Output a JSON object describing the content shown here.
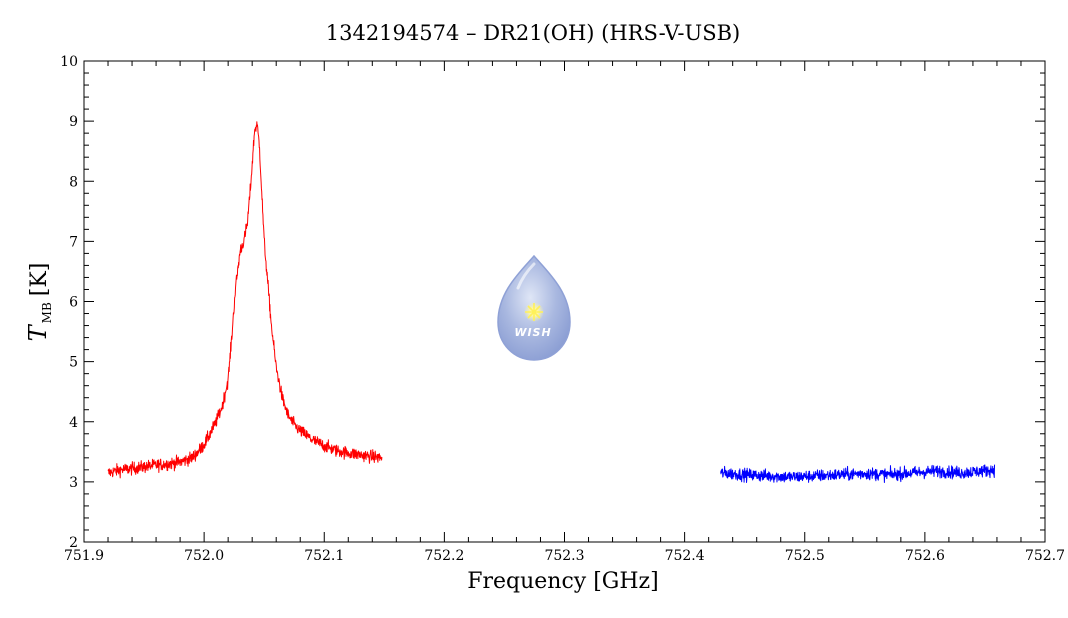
{
  "chart_data": {
    "type": "line",
    "title": "1342194574 – DR21(OH) (HRS-V-USB)",
    "xlabel": "Frequency [GHz]",
    "ylabel_main": "T",
    "ylabel_sub": "MB",
    "ylabel_unit": "[K]",
    "xlim": [
      751.9,
      752.7
    ],
    "ylim": [
      2,
      10
    ],
    "x_ticks": [
      "751.9",
      "752.0",
      "752.1",
      "752.2",
      "752.3",
      "752.4",
      "752.5",
      "752.6",
      "752.7"
    ],
    "y_ticks": [
      "2",
      "3",
      "4",
      "5",
      "6",
      "7",
      "8",
      "9",
      "10"
    ],
    "grid": false,
    "legend": "none",
    "series": [
      {
        "color": "#ff0000",
        "x": [
          751.92,
          751.93,
          751.94,
          751.95,
          751.96,
          751.97,
          751.98,
          751.99,
          751.995,
          752.0,
          752.005,
          752.01,
          752.015,
          752.02,
          752.023,
          752.026,
          752.03,
          752.033,
          752.036,
          752.039,
          752.042,
          752.044,
          752.046,
          752.048,
          752.05,
          752.053,
          752.056,
          752.06,
          752.065,
          752.07,
          752.075,
          752.08,
          752.09,
          752.1,
          752.11,
          752.12,
          752.13,
          752.14,
          752.148
        ],
        "y": [
          3.15,
          3.2,
          3.22,
          3.25,
          3.28,
          3.3,
          3.33,
          3.4,
          3.5,
          3.62,
          3.8,
          4.0,
          4.25,
          4.7,
          5.4,
          6.2,
          6.85,
          7.0,
          7.3,
          8.0,
          8.85,
          8.95,
          8.6,
          7.8,
          7.0,
          6.3,
          5.6,
          4.9,
          4.4,
          4.1,
          3.95,
          3.85,
          3.7,
          3.6,
          3.52,
          3.48,
          3.45,
          3.42,
          3.4
        ]
      },
      {
        "color": "#0000ff",
        "x": [
          752.43,
          752.45,
          752.47,
          752.49,
          752.51,
          752.53,
          752.55,
          752.57,
          752.59,
          752.61,
          752.63,
          752.658
        ],
        "y": [
          3.15,
          3.12,
          3.1,
          3.08,
          3.1,
          3.12,
          3.14,
          3.12,
          3.15,
          3.18,
          3.15,
          3.2
        ]
      }
    ]
  },
  "logo": {
    "text": "WISH"
  }
}
